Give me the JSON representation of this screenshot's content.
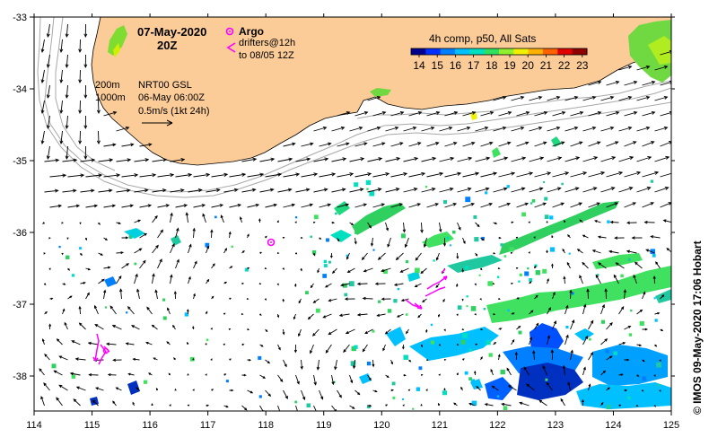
{
  "map": {
    "date": "07-May-2020",
    "time": "20Z",
    "argo_label": "Argo",
    "drifters_line1": "drifters@12h",
    "drifters_line2": "to 08/05 12Z",
    "sst_title": "4h comp, p50, All Sats",
    "colorbar_ticks": [
      "14",
      "15",
      "16",
      "17",
      "18",
      "19",
      "20",
      "21",
      "22",
      "23"
    ],
    "isobaths": [
      "200m",
      "1000m"
    ],
    "product_line1": "NRT00 GSL",
    "product_line2": "06-May 06:00Z",
    "scale_label": "0.5m/s (1kt 24h)",
    "credit": "© IMOS 09-May-2020 17:06 Hobart",
    "x_ticks": [
      "114",
      "115",
      "116",
      "117",
      "118",
      "119",
      "120",
      "121",
      "122",
      "123",
      "124",
      "125"
    ],
    "y_ticks": [
      "-33",
      "-34",
      "-35",
      "-36",
      "-37",
      "-38"
    ],
    "colors": {
      "land": "#fbcb98",
      "argo": "#ff00ff",
      "drifter": "#ff00ff",
      "isobath": "#a8a8a8",
      "arrow": "#000000"
    },
    "colorbar_colors": [
      "#000090",
      "#0030ff",
      "#0080ff",
      "#00c0ff",
      "#00e0c0",
      "#30e060",
      "#90f030",
      "#f0f000",
      "#ffb000",
      "#ff6000",
      "#e00000",
      "#900000"
    ]
  }
}
